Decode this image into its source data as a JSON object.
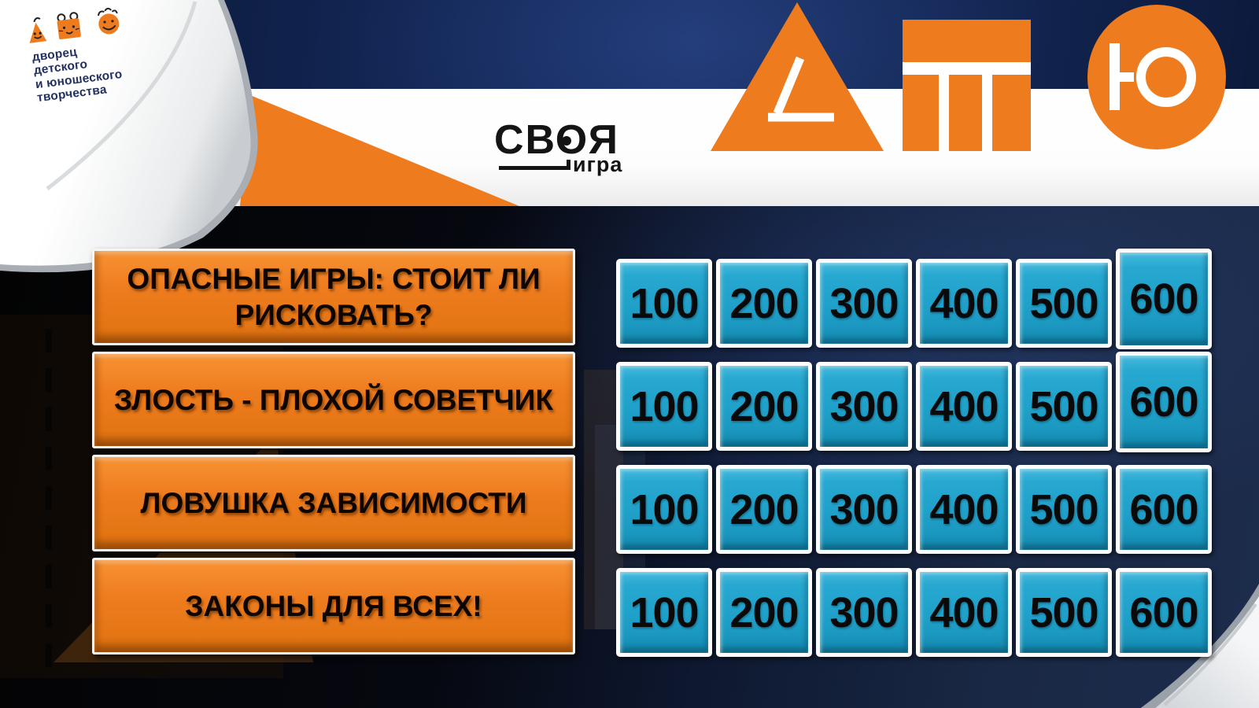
{
  "branding": {
    "palace_logo_lines": [
      "дворец",
      "детского",
      "и юношеского",
      "творчества"
    ],
    "palace_logo_icons": [
      "triangle-face-icon",
      "cat-square-icon",
      "smile-circle-icon"
    ],
    "game_logo_main": "СВОЯ",
    "game_logo_sub": "игра",
    "big_letters": [
      "Д",
      "Т",
      "Ю"
    ]
  },
  "colors": {
    "orange": "#ee7c1e",
    "tile_blue": "#1fa0c9",
    "navy": "#13265a",
    "category_text": "#0d0500",
    "tile_text": "#0a0a0a"
  },
  "board": {
    "categories": [
      "ОПАСНЫЕ ИГРЫ: СТОИТ ЛИ РИСКОВАТЬ?",
      "ЗЛОСТЬ - ПЛОХОЙ СОВЕТЧИК",
      "ЛОВУШКА ЗАВИСИМОСТИ",
      "ЗАКОНЫ ДЛЯ ВСЕХ!"
    ],
    "values": [
      100,
      200,
      300,
      400,
      500,
      600
    ],
    "row_count": 4
  }
}
